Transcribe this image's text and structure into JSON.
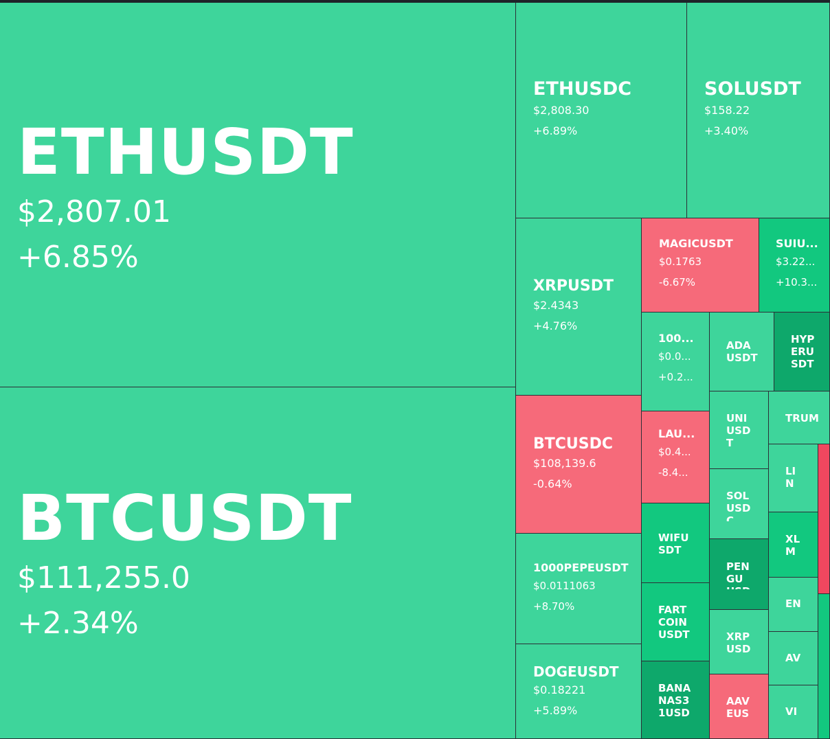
{
  "colors": {
    "up_light": "#3ed59b",
    "up_mid": "#12c87f",
    "up_dark": "#0ea86b",
    "down_light": "#f66a7a",
    "down_dark": "#f0475f",
    "background": "#1e2329"
  },
  "tiles": {
    "ethusdt": {
      "symbol": "ETHUSDT",
      "price": "$2,807.01",
      "change": "+6.85%"
    },
    "btcusdt": {
      "symbol": "BTCUSDT",
      "price": "$111,255.0",
      "change": "+2.34%"
    },
    "ethusdc": {
      "symbol": "ETHUSDC",
      "price": "$2,808.30",
      "change": "+6.89%"
    },
    "solusdt": {
      "symbol": "SOLUSDT",
      "price": "$158.22",
      "change": "+3.40%"
    },
    "xrpusdt": {
      "symbol": "XRPUSDT",
      "price": "$2.4343",
      "change": "+4.76%"
    },
    "magicusdt": {
      "symbol": "MAGICUSDT",
      "price": "$0.1763",
      "change": "-6.67%"
    },
    "suiusdt": {
      "symbol": "SUIU...",
      "price": "$3.22...",
      "change": "+10.3..."
    },
    "btcusdc": {
      "symbol": "BTCUSDC",
      "price": "$108,139.6",
      "change": "-0.64%"
    },
    "pepeusdt": {
      "symbol": "1000PEPEUSDT",
      "price": "$0.0111063",
      "change": "+8.70%"
    },
    "dogeusdt": {
      "symbol": "DOGEUSDT",
      "price": "$0.18221",
      "change": "+5.89%"
    },
    "t100": {
      "symbol": "100...",
      "price": "$0.0...",
      "change": "+0.2..."
    },
    "launch": {
      "symbol": "LAU...",
      "price": "$0.4...",
      "change": "-8.4..."
    },
    "adausdt": {
      "symbol": "ADA USDT"
    },
    "hyperusdt": {
      "symbol": "HYP ERU SDT"
    },
    "uniusdt": {
      "symbol": "UNI USD T"
    },
    "trump": {
      "symbol": "TRUM"
    },
    "solusdc": {
      "symbol": "SOL USD C"
    },
    "link": {
      "symbol": "LI N"
    },
    "wifusdt": {
      "symbol": "WIFU SDT"
    },
    "pengu": {
      "symbol": "PEN GU USD"
    },
    "xlm": {
      "symbol": "XL M"
    },
    "fartcoin": {
      "symbol": "FART COIN USDT"
    },
    "xrpusdc": {
      "symbol": "XRP USD"
    },
    "ena": {
      "symbol": "EN"
    },
    "avax": {
      "symbol": "AV"
    },
    "banana": {
      "symbol": "BANA NAS3 1USD"
    },
    "aave": {
      "symbol": "AAV EUS"
    },
    "virtual": {
      "symbol": "VI"
    }
  }
}
